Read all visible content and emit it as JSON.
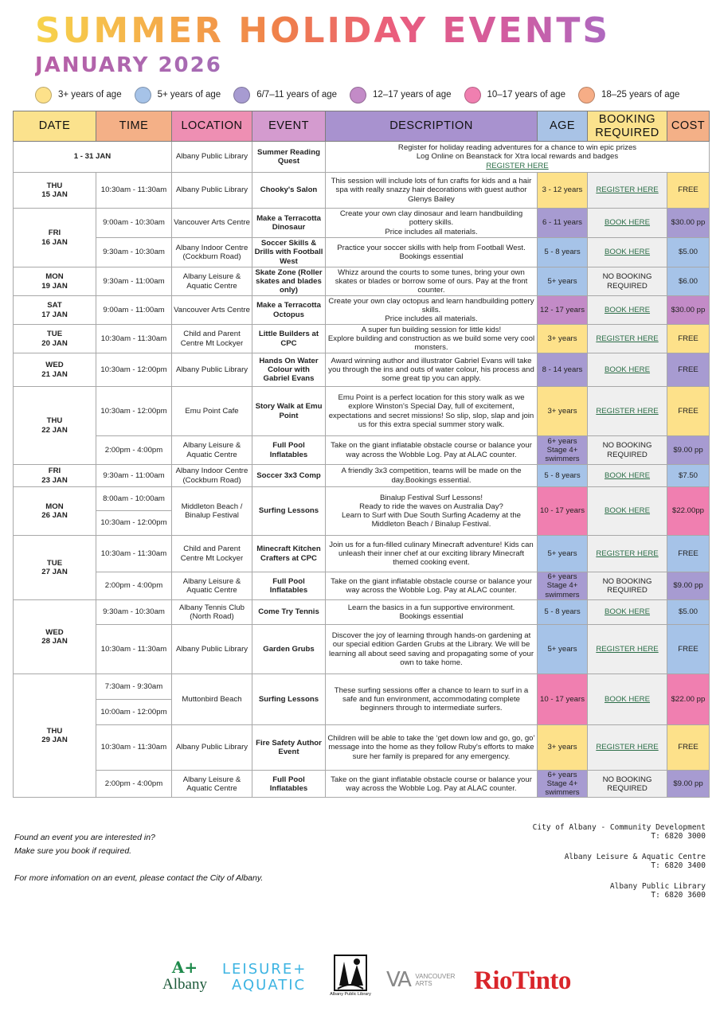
{
  "header": {
    "title": "SUMMER HOLIDAY EVENTS",
    "subtitle": "JANUARY 2026"
  },
  "legend": [
    {
      "label": "3+ years of age",
      "color": "#fde18a"
    },
    {
      "label": "5+ years of age",
      "color": "#a6c3e8"
    },
    {
      "label": "6/7–11 years of age",
      "color": "#a79bd1"
    },
    {
      "label": "12–17 years of age",
      "color": "#c38bc7"
    },
    {
      "label": "10–17 years of age",
      "color": "#f07fb0"
    },
    {
      "label": "18–25 years of age",
      "color": "#f6ad86"
    }
  ],
  "table": {
    "headers": {
      "date": "DATE",
      "time": "TIME",
      "location": "LOCATION",
      "event": "EVENT",
      "description": "DESCRIPTION",
      "age": "AGE",
      "booking_1": "BOOKING",
      "booking_2": "REQUIRED",
      "cost": "COST"
    },
    "rows": {
      "r1": {
        "date": "1 - 31 JAN",
        "location": "Albany Public Library",
        "event": "Summer Reading Quest",
        "desc_1": "Register for holiday reading adventures for a chance to win epic prizes",
        "desc_2": "Log Online on Beanstack for Xtra local rewards and badges",
        "desc_link": "REGISTER HERE"
      },
      "r2": {
        "date_day": "THU",
        "date_num": "15 JAN",
        "time": "10:30am - 11:30am",
        "location": "Albany Public Library",
        "event": "Chooky's Salon",
        "desc": "This session will include lots of fun crafts for kids and a hair spa with really snazzy hair decorations with guest author Glenys Bailey",
        "age": "3 - 12 years",
        "booking": "REGISTER HERE",
        "cost": "FREE"
      },
      "r3": {
        "date_day": "FRI",
        "date_num": "16 JAN",
        "time": "9:00am - 10:30am",
        "location": "Vancouver Arts Centre",
        "event": "Make a Terracotta Dinosaur",
        "desc_1": "Create your own clay dinosaur and learn handbuilding pottery skills.",
        "desc_2": "Price includes all materials.",
        "age": "6 - 11 years",
        "booking": "BOOK HERE",
        "cost": "$30.00 pp"
      },
      "r4": {
        "time": "9:30am - 10:30am",
        "location": "Albany Indoor Centre (Cockburn Road)",
        "event": "Soccer Skills & Drills with Football West",
        "desc": "Practice your soccer skills with help from Football West. Bookings essential",
        "age": "5 - 8 years",
        "booking": "BOOK HERE",
        "cost": "$5.00"
      },
      "r5": {
        "date_day": "MON",
        "date_num": "19 JAN",
        "time": "9:30am - 11:00am",
        "location": "Albany Leisure & Aquatic Centre",
        "event": "Skate Zone (Roller skates and blades only)",
        "desc": "Whizz around the courts to some tunes, bring your own skates or blades or borrow some of ours. Pay at the front counter.",
        "age": "5+ years",
        "booking": "NO BOOKING REQUIRED",
        "cost": "$6.00"
      },
      "r6": {
        "date_day": "SAT",
        "date_num": "17 JAN",
        "time": "9:00am - 11:00am",
        "location": "Vancouver Arts Centre",
        "event": "Make a Terracotta Octopus",
        "desc_1": "Create your own clay octopus and learn handbuilding pottery skills.",
        "desc_2": "Price includes all materials.",
        "age": "12 - 17 years",
        "booking": "BOOK HERE",
        "cost": "$30.00 pp"
      },
      "r7": {
        "date_day": "TUE",
        "date_num": "20 JAN",
        "time": "10:30am - 11:30am",
        "location": "Child and Parent Centre Mt Lockyer",
        "event": "Little Builders at CPC",
        "desc_1": "A super fun building session for little kids!",
        "desc_2": "Explore building and construction as we build some very cool monsters.",
        "age": "3+ years",
        "booking": "REGISTER HERE",
        "cost": "FREE"
      },
      "r8": {
        "date_day": "WED",
        "date_num": "21 JAN",
        "time": "10:30am - 12:00pm",
        "location": "Albany Public Library",
        "event": "Hands On Water Colour with Gabriel Evans",
        "desc": "Award winning author and illustrator Gabriel Evans will take you through the ins and outs of water colour, his process and some great tip you can apply.",
        "age": "8 - 14 years",
        "booking": "BOOK HERE",
        "cost": "FREE"
      },
      "r9": {
        "date_day": "THU",
        "date_num": "22 JAN",
        "time": "10:30am - 12:00pm",
        "location": "Emu Point Cafe",
        "event": "Story Walk at Emu Point",
        "desc": "Emu Point is a perfect location for this story walk as we explore Winston's Special Day, full of excitement, expectations and secret missions! So slip, slop, slap and join us for this extra special summer story walk.",
        "age": "3+ years",
        "booking": "REGISTER HERE",
        "cost": "FREE"
      },
      "r10": {
        "time": "2:00pm - 4:00pm",
        "location": "Albany Leisure & Aquatic Centre",
        "event": "Full Pool Inflatables",
        "desc": "Take on the giant inflatable obstacle course or balance your way across the Wobble Log. Pay at ALAC counter.",
        "age_1": "6+ years",
        "age_2": "Stage 4+ swimmers",
        "booking": "NO BOOKING REQUIRED",
        "cost": "$9.00 pp"
      },
      "r11": {
        "date_day": "FRI",
        "date_num": "23 JAN",
        "time": "9:30am - 11:00am",
        "location": "Albany Indoor Centre (Cockburn Road)",
        "event": "Soccer 3x3 Comp",
        "desc": "A friendly 3x3 competition, teams will be made on the day.Bookings essential.",
        "age": "5 - 8 years",
        "booking": "BOOK HERE",
        "cost": "$7.50"
      },
      "r12": {
        "date_day": "MON",
        "date_num": "26 JAN",
        "time_1": "8:00am - 10:00am",
        "time_2": "10:30am - 12:00pm",
        "location": "Middleton Beach / Binalup Festival",
        "event": "Surfing Lessons",
        "desc_1": "Binalup Festival Surf Lessons!",
        "desc_2": "Ready to ride the waves on Australia Day?",
        "desc_3": "Learn to Surf with Due South Surfing Academy at the Middleton Beach / Binalup Festival.",
        "age": "10 - 17 years",
        "booking": "BOOK HERE",
        "cost": "$22.00pp"
      },
      "r13": {
        "date_day": "TUE",
        "date_num": "27 JAN",
        "time": "10:30am - 11:30am",
        "location": "Child and Parent Centre Mt Lockyer",
        "event": "Minecraft Kitchen Crafters at CPC",
        "desc": "Join us for a fun-filled culinary Minecraft adventure! Kids can unleash their inner chef at our exciting library Minecraft themed cooking event.",
        "age": "5+ years",
        "booking": "REGISTER HERE",
        "cost": "FREE"
      },
      "r14": {
        "time": "2:00pm - 4:00pm",
        "location": "Albany Leisure & Aquatic Centre",
        "event": "Full Pool Inflatables",
        "desc": "Take on the giant inflatable obstacle course or balance your way across the Wobble Log. Pay at ALAC counter.",
        "age_1": "6+ years",
        "age_2": "Stage 4+ swimmers",
        "booking": "NO BOOKING REQUIRED",
        "cost": "$9.00 pp"
      },
      "r15": {
        "date_day": "WED",
        "date_num": "28 JAN",
        "time": "9:30am - 10:30am",
        "location": "Albany Tennis Club (North Road)",
        "event": "Come Try Tennis",
        "desc_1": "Learn the basics in a fun supportive environment.",
        "desc_2": "Bookings essential",
        "age": "5 - 8 years",
        "booking": "BOOK HERE",
        "cost": "$5.00"
      },
      "r16": {
        "time": "10:30am - 11:30am",
        "location": "Albany Public Library",
        "event": "Garden Grubs",
        "desc": "Discover the joy of learning through hands-on gardening at our special edition Garden Grubs at the Library. We will be learning all about seed saving and propagating some of your own to take home.",
        "age": "5+ years",
        "booking": "REGISTER HERE",
        "cost": "FREE"
      },
      "r17": {
        "date_day": "THU",
        "date_num": "29 JAN",
        "time_1": "7:30am - 9:30am",
        "time_2": "10:00am - 12:00pm",
        "location": "Muttonbird Beach",
        "event": "Surfing Lessons",
        "desc": "These surfing sessions offer a chance to learn to surf in a safe and fun environment, accommodating complete beginners through to intermediate surfers.",
        "age": "10 - 17 years",
        "booking": "BOOK HERE",
        "cost": "$22.00 pp"
      },
      "r18": {
        "time": "10:30am - 11:30am",
        "location": "Albany Public Library",
        "event": "Fire Safety Author Event",
        "desc": "Children will be able to take the ‘get down low and go, go, go’ message into the home as they follow Ruby's efforts to make sure her family is prepared for any emergency.",
        "age": "3+ years",
        "booking": "REGISTER HERE",
        "cost": "FREE"
      },
      "r19": {
        "time": "2:00pm - 4:00pm",
        "location": "Albany Leisure & Aquatic Centre",
        "event": "Full Pool Inflatables",
        "desc": "Take on the giant inflatable obstacle course or balance your way across the Wobble Log. Pay at ALAC counter.",
        "age_1": "6+ years",
        "age_2": "Stage 4+ swimmers",
        "booking": "NO BOOKING REQUIRED",
        "cost": "$9.00 pp"
      }
    }
  },
  "footer": {
    "line1": "Found an event you are interested in?",
    "line2": "Make sure you book if required.",
    "line3": "For more infomation on an event, please contact the City of Albany.",
    "contacts": [
      {
        "name": "City of Albany - Community Development",
        "phone": "T: 6820 3000"
      },
      {
        "name": "Albany Leisure & Aquatic Centre",
        "phone": "T: 6820 3400"
      },
      {
        "name": "Albany Public Library",
        "phone": "T: 6820 3600"
      }
    ]
  },
  "logos": {
    "albany_mark": "A+",
    "albany": "Albany",
    "leisure_1": "LEISURE+",
    "leisure_2": "AQUATIC",
    "library": "Albany Public Library",
    "vancouver_mark": "VA",
    "vancouver_1": "VANCOUVER",
    "vancouver_2": "ARTS",
    "riotinto": "RioTinto"
  }
}
